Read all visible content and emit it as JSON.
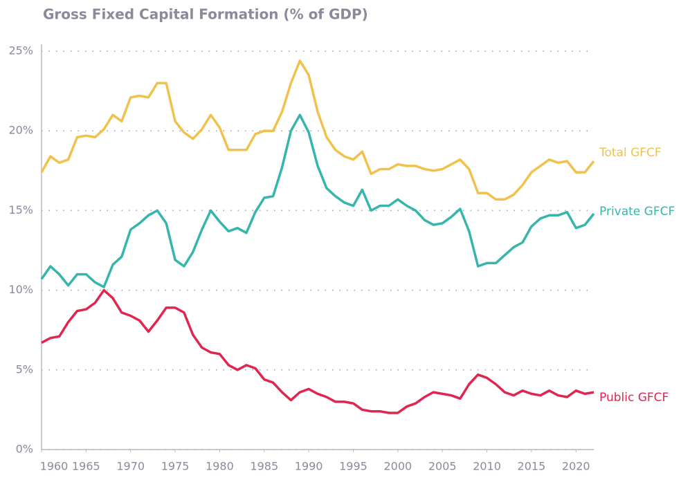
{
  "chart_data": {
    "type": "line",
    "title": "Gross Fixed Capital Formation (% of GDP)",
    "x": [
      1960,
      1961,
      1962,
      1963,
      1964,
      1965,
      1966,
      1967,
      1968,
      1969,
      1970,
      1971,
      1972,
      1973,
      1974,
      1975,
      1976,
      1977,
      1978,
      1979,
      1980,
      1981,
      1982,
      1983,
      1984,
      1985,
      1986,
      1987,
      1988,
      1989,
      1990,
      1991,
      1992,
      1993,
      1994,
      1995,
      1996,
      1997,
      1998,
      1999,
      2000,
      2001,
      2002,
      2003,
      2004,
      2005,
      2006,
      2007,
      2008,
      2009,
      2010,
      2011,
      2012,
      2013,
      2014,
      2015,
      2016,
      2017,
      2018,
      2019,
      2020,
      2021,
      2022
    ],
    "series": [
      {
        "name": "Total GFCF",
        "color": "#f0c24b",
        "values": [
          17.4,
          18.4,
          18.0,
          18.2,
          19.6,
          19.7,
          19.6,
          20.1,
          21.0,
          20.6,
          22.1,
          22.2,
          22.1,
          23.0,
          23.0,
          20.6,
          19.9,
          19.5,
          20.1,
          21.0,
          20.2,
          18.8,
          18.8,
          18.8,
          19.8,
          20.0,
          20.0,
          21.2,
          23.0,
          24.4,
          23.5,
          21.2,
          19.6,
          18.8,
          18.4,
          18.2,
          18.7,
          17.3,
          17.6,
          17.6,
          17.9,
          17.8,
          17.8,
          17.6,
          17.5,
          17.6,
          17.9,
          18.2,
          17.6,
          16.1,
          16.1,
          15.7,
          15.7,
          16.0,
          16.6,
          17.4,
          17.8,
          18.2,
          18.0,
          18.1,
          17.4,
          17.4,
          18.1
        ]
      },
      {
        "name": "Private GFCF",
        "color": "#36b5ad",
        "values": [
          10.7,
          11.5,
          11.0,
          10.3,
          11.0,
          11.0,
          10.5,
          10.2,
          11.6,
          12.1,
          13.8,
          14.2,
          14.7,
          15.0,
          14.2,
          11.9,
          11.5,
          12.4,
          13.8,
          15.0,
          14.3,
          13.7,
          13.9,
          13.6,
          14.9,
          15.8,
          15.9,
          17.7,
          20.0,
          21.0,
          19.9,
          17.8,
          16.4,
          15.9,
          15.5,
          15.3,
          16.3,
          15.0,
          15.3,
          15.3,
          15.7,
          15.3,
          15.0,
          14.4,
          14.1,
          14.2,
          14.6,
          15.1,
          13.7,
          11.5,
          11.7,
          11.7,
          12.2,
          12.7,
          13.0,
          14.0,
          14.5,
          14.7,
          14.7,
          14.9,
          13.9,
          14.1,
          14.8
        ]
      },
      {
        "name": "Public GFCF",
        "color": "#e0254f",
        "values": [
          6.7,
          7.0,
          7.1,
          8.0,
          8.7,
          8.8,
          9.2,
          10.0,
          9.5,
          8.6,
          8.4,
          8.1,
          7.4,
          8.1,
          8.9,
          8.9,
          8.6,
          7.2,
          6.4,
          6.1,
          6.0,
          5.3,
          5.0,
          5.3,
          5.1,
          4.4,
          4.2,
          3.6,
          3.1,
          3.6,
          3.8,
          3.5,
          3.3,
          3.0,
          3.0,
          2.9,
          2.5,
          2.4,
          2.4,
          2.3,
          2.3,
          2.7,
          2.9,
          3.3,
          3.6,
          3.5,
          3.4,
          3.2,
          4.1,
          4.7,
          4.5,
          4.1,
          3.6,
          3.4,
          3.7,
          3.5,
          3.4,
          3.7,
          3.4,
          3.3,
          3.7,
          3.5,
          3.6
        ]
      }
    ],
    "xlim": [
      1960,
      2022
    ],
    "xticks": [
      1960,
      1965,
      1970,
      1975,
      1980,
      1985,
      1990,
      1995,
      2000,
      2005,
      2010,
      2015,
      2020
    ],
    "ylim": [
      0,
      25
    ],
    "yticks": [
      {
        "value": 0,
        "label": "0%"
      },
      {
        "value": 5,
        "label": "5%"
      },
      {
        "value": 10,
        "label": "10%"
      },
      {
        "value": 15,
        "label": "15%"
      },
      {
        "value": 20,
        "label": "20%"
      },
      {
        "value": 25,
        "label": "25%"
      }
    ],
    "grid": true
  }
}
